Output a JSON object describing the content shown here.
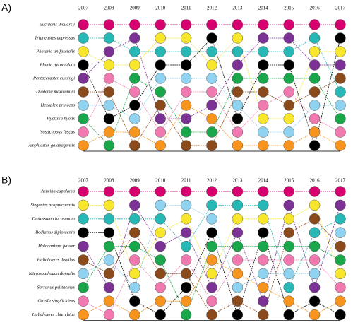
{
  "chart_data": [
    {
      "type": "bump",
      "panel_label": "A)",
      "categories": [
        "2007",
        "2008",
        "2009",
        "2010",
        "2011",
        "2012",
        "2013",
        "2014",
        "2015",
        "2016",
        "2017"
      ],
      "row_labels": [
        "Eucidaris thouarsii",
        "Tripneustes depressus",
        "Phataria unifascialis",
        "Pharia pyramidata",
        "Pentaceraster cumingi",
        "Diadema mexicanum",
        "Hexaplex princeps",
        "Hyotissa hyotis",
        "Isostichopus fuscus",
        "Amphiaster galapagensis"
      ],
      "ylim": [
        1,
        10
      ],
      "y_inverted": true,
      "series": [
        {
          "color": "#d6006e",
          "values": [
            1,
            1,
            1,
            1,
            1,
            1,
            1,
            1,
            1,
            1,
            1
          ]
        },
        {
          "color": "#27b8b6",
          "values": [
            2,
            2,
            3,
            3,
            3,
            3,
            3,
            3,
            3,
            2,
            6
          ]
        },
        {
          "color": "#f7e62b",
          "values": [
            3,
            4,
            4,
            2,
            2,
            4,
            2,
            8,
            8,
            3,
            3
          ]
        },
        {
          "color": "#000000",
          "values": [
            4,
            8,
            7,
            4,
            4,
            2,
            8,
            4,
            4,
            10,
            2
          ]
        },
        {
          "color": "#7b3294",
          "values": [
            5,
            3,
            2,
            8,
            8,
            7,
            4,
            2,
            2,
            4,
            4
          ]
        },
        {
          "color": "#8b4a1c",
          "values": [
            6,
            6,
            10,
            7,
            10,
            10,
            6,
            6,
            7,
            6,
            5
          ]
        },
        {
          "color": "#8fd3f0",
          "values": [
            7,
            7,
            8,
            5,
            5,
            5,
            7,
            9,
            9,
            7,
            7
          ]
        },
        {
          "color": "#1aa64a",
          "values": [
            8,
            10,
            5,
            6,
            9,
            9,
            5,
            5,
            5,
            5,
            8
          ]
        },
        {
          "color": "#f07ab0",
          "values": [
            9,
            5,
            6,
            9,
            6,
            6,
            9,
            7,
            6,
            8,
            9
          ]
        },
        {
          "color": "#f7941d",
          "values": [
            10,
            9,
            9,
            10,
            7,
            8,
            10,
            10,
            10,
            9,
            10
          ]
        }
      ]
    },
    {
      "type": "bump",
      "panel_label": "B)",
      "categories": [
        "2007",
        "2008",
        "2009",
        "2010",
        "2011",
        "2012",
        "2013",
        "2014",
        "2015",
        "2016",
        "2017"
      ],
      "row_labels": [
        "Azurina eupalama",
        "Stegastes acapulcoensis",
        "Thalassoma lucasanum",
        "Bodianus diplotaenia",
        "Holacanthus passer",
        "Halichoeres dispilus",
        "Microspathodon dorsalis",
        "Serranus psittacinus",
        "Girella simplicidens",
        "Halichoeres chierchiae"
      ],
      "ylim": [
        1,
        10
      ],
      "y_inverted": true,
      "series": [
        {
          "color": "#d6006e",
          "values": [
            1,
            1,
            1,
            1,
            1,
            1,
            1,
            1,
            1,
            1,
            1
          ]
        },
        {
          "color": "#f7e62b",
          "values": [
            2,
            2,
            7,
            4,
            3,
            7,
            3,
            3,
            3,
            2,
            7
          ]
        },
        {
          "color": "#27b8b6",
          "values": [
            3,
            3,
            3,
            3,
            5,
            2,
            2,
            2,
            8,
            4,
            3
          ]
        },
        {
          "color": "#000000",
          "values": [
            4,
            4,
            9,
            10,
            8,
            4,
            10,
            4,
            10,
            9,
            10
          ]
        },
        {
          "color": "#7b3294",
          "values": [
            5,
            8,
            2,
            5,
            4,
            8,
            4,
            9,
            2,
            8,
            2
          ]
        },
        {
          "color": "#8b4a1c",
          "values": [
            6,
            7,
            4,
            7,
            7,
            10,
            9,
            10,
            4,
            3,
            5
          ]
        },
        {
          "color": "#8fd3f0",
          "values": [
            7,
            6,
            8,
            2,
            2,
            3,
            8,
            7,
            7,
            7,
            4
          ]
        },
        {
          "color": "#1aa64a",
          "values": [
            8,
            5,
            5,
            6,
            10,
            5,
            5,
            5,
            5,
            5,
            6
          ]
        },
        {
          "color": "#f07ab0",
          "values": [
            9,
            10,
            6,
            8,
            6,
            9,
            6,
            6,
            6,
            6,
            8
          ]
        },
        {
          "color": "#f7941d",
          "values": [
            10,
            9,
            10,
            9,
            9,
            6,
            7,
            8,
            9,
            10,
            9
          ]
        }
      ]
    }
  ]
}
